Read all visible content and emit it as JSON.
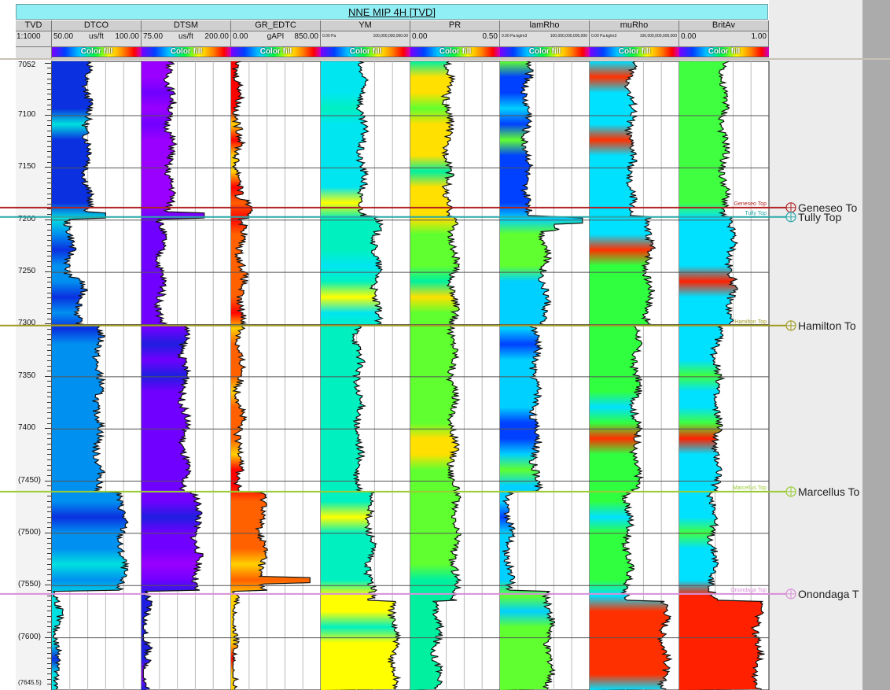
{
  "title": "NNE MIP 4H [TVD]",
  "tvd": {
    "name": "TVD",
    "scale": "1:1000"
  },
  "tracks": [
    {
      "name": "DTCO",
      "min": "50.00",
      "unit": "us/ft",
      "max": "100.00",
      "fill": "Color fill"
    },
    {
      "name": "DTSM",
      "min": "75.00",
      "unit": "us/ft",
      "max": "200.00",
      "fill": "Color fill"
    },
    {
      "name": "GR_EDTC",
      "min": "0.00",
      "unit": "gAPI",
      "max": "850.00",
      "fill": "Color fill"
    },
    {
      "name": "YM",
      "min": "0.00 Pa",
      "unit": "",
      "max": "100,000,000,000.00",
      "fill": "Color fill"
    },
    {
      "name": "PR",
      "min": "0.00",
      "unit": "",
      "max": "0.50",
      "fill": "Color fill"
    },
    {
      "name": "lamRho",
      "min": "0.00 Pa.kg/m3",
      "unit": "",
      "max": "100,000,000,000,000",
      "fill": "Color fill"
    },
    {
      "name": "muRho",
      "min": "0.00 Pa.kg/m3",
      "unit": "",
      "max": "100,000,000,000,000",
      "fill": "Color fill"
    },
    {
      "name": "BritAv",
      "min": "0.00",
      "unit": "",
      "max": "1.00",
      "fill": "Color fill"
    }
  ],
  "depth_labels": [
    "7052",
    "7100",
    "7150",
    "7200",
    "7250",
    "7300",
    "7350",
    "7400",
    "(7450)",
    "(7500)",
    "(7550)",
    "(7600)",
    "(7645.5)"
  ],
  "depth_values": [
    7052,
    7100,
    7150,
    7200,
    7250,
    7300,
    7350,
    7400,
    7450,
    7500,
    7550,
    7600,
    7645.5
  ],
  "depth_range": [
    7048,
    7650
  ],
  "markers": [
    {
      "name": "Geneseo Top",
      "short": "Geneseo Top",
      "label": "Geneseo To",
      "depth": 7188,
      "color": "#b22222"
    },
    {
      "name": "Tully Top",
      "short": "Tully Top",
      "label": "Tully Top",
      "depth": 7197,
      "color": "#2aa8a8"
    },
    {
      "name": "Hamilton Top",
      "short": "Hamilton Top",
      "label": "Hamilton To",
      "depth": 7301,
      "color": "#a09a22"
    },
    {
      "name": "Marcellus Top",
      "short": "Marcellus Top",
      "label": "Marcellus To",
      "depth": 7460,
      "color": "#9acc33"
    },
    {
      "name": "Onondaga Top",
      "short": "Onondaga Top",
      "label": "Onondaga T",
      "depth": 7558,
      "color": "#d88fd8"
    }
  ],
  "colors": {
    "title_bg": "#8feff4",
    "header_bg": "#cfcfcf",
    "right_panel": "#ececec",
    "scrollbar": "#ababab"
  }
}
